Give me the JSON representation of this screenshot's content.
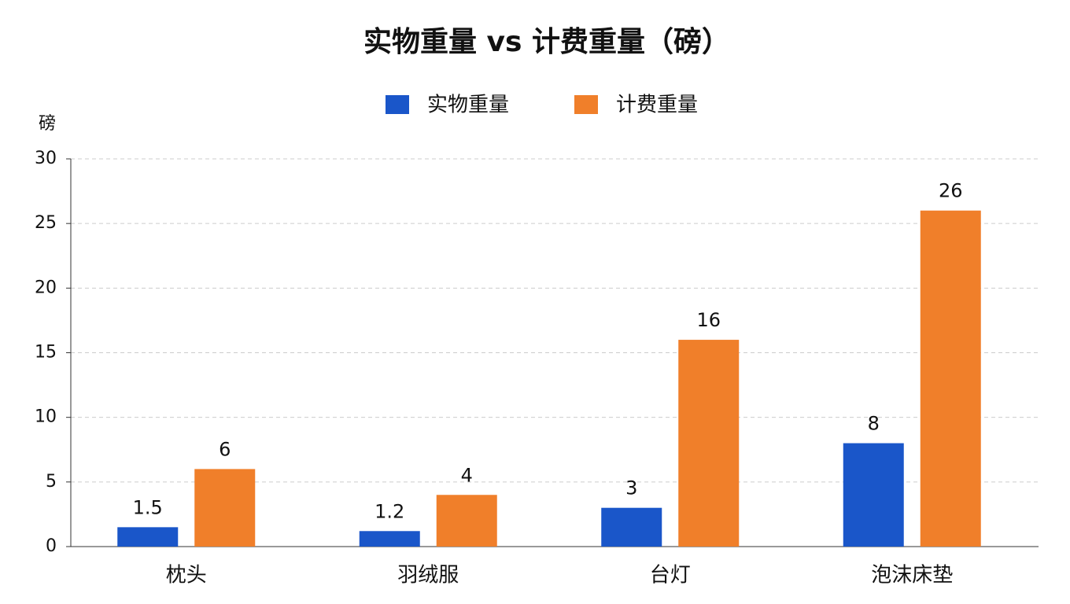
{
  "chart_data": {
    "type": "bar",
    "title": "实物重量 vs 计费重量（磅）",
    "y_label": "磅",
    "categories": [
      "枕头",
      "羽绒服",
      "台灯",
      "泡沫床垫"
    ],
    "series": [
      {
        "name": "实物重量",
        "color": "#1a56c9",
        "values": [
          1.5,
          1.2,
          3,
          8
        ]
      },
      {
        "name": "计费重量",
        "color": "#f07f2a",
        "values": [
          6,
          4,
          16,
          26
        ]
      }
    ],
    "ylim": [
      0,
      30
    ],
    "yticks": [
      0,
      5,
      10,
      15,
      20,
      25,
      30
    ],
    "grid": true,
    "legend": "top"
  }
}
